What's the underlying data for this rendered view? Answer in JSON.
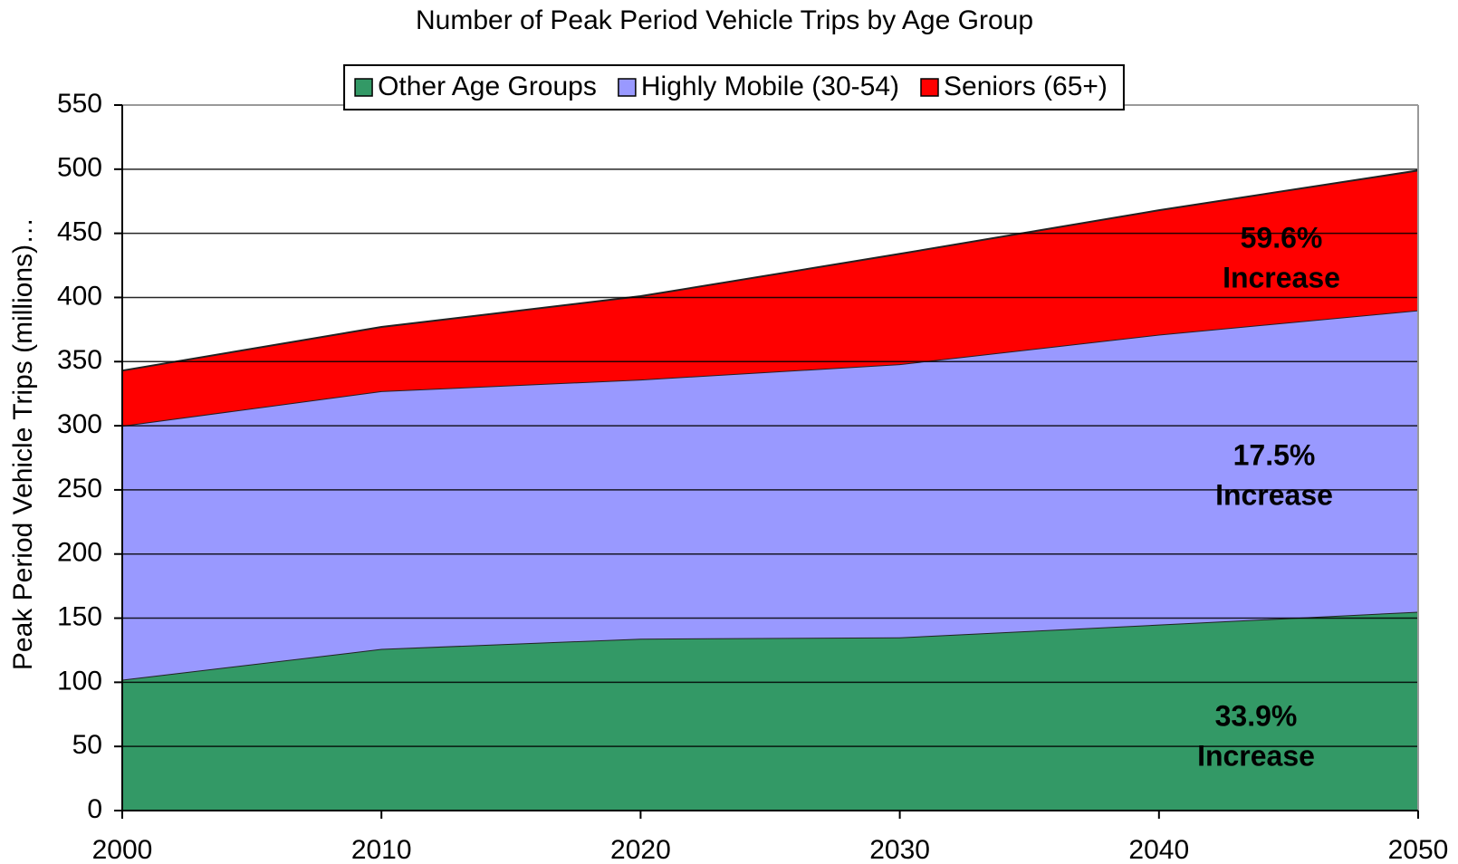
{
  "chart_data": {
    "type": "stacked_area",
    "title": "Number of Peak Period Vehicle Trips by Age Group",
    "y_label": "Peak Period Vehicle Trips (millions)…",
    "x": [
      2000,
      2010,
      2020,
      2030,
      2040,
      2050
    ],
    "xlim": [
      2000,
      2050
    ],
    "xticks": [
      2000,
      2010,
      2020,
      2030,
      2040,
      2050
    ],
    "ylim": [
      0,
      550
    ],
    "yticks": [
      0,
      50,
      100,
      150,
      200,
      250,
      300,
      350,
      400,
      450,
      500,
      550
    ],
    "grid": true,
    "legend": "top",
    "series": [
      {
        "name": "Other Age Groups",
        "color": "#339966",
        "values": [
          102,
          126,
          134,
          135,
          145,
          155
        ]
      },
      {
        "name": "Highly Mobile (30-54)",
        "color": "#9999ff",
        "values": [
          198,
          201,
          202,
          213,
          226,
          235
        ]
      },
      {
        "name": "Seniors (65+)",
        "color": "#ff0000",
        "values": [
          43,
          50,
          65,
          86,
          97,
          109
        ]
      }
    ],
    "annotations": [
      [
        "59.6%",
        "Increase"
      ],
      [
        "17.5%",
        "Increase"
      ],
      [
        "33.9%",
        "Increase"
      ]
    ]
  }
}
